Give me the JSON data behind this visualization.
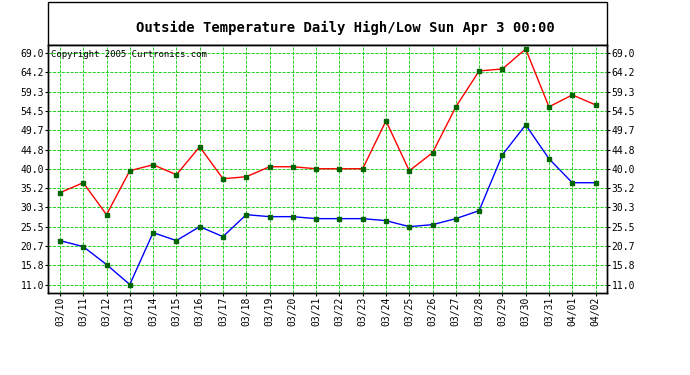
{
  "title": "Outside Temperature Daily High/Low Sun Apr 3 00:00",
  "copyright": "Copyright 2005 Curtronics.com",
  "dates": [
    "03/10",
    "03/11",
    "03/12",
    "03/13",
    "03/14",
    "03/15",
    "03/16",
    "03/17",
    "03/18",
    "03/19",
    "03/20",
    "03/21",
    "03/22",
    "03/23",
    "03/24",
    "03/25",
    "03/26",
    "03/27",
    "03/28",
    "03/29",
    "03/30",
    "03/31",
    "04/01",
    "04/02"
  ],
  "high_temps": [
    34.0,
    36.5,
    28.5,
    39.5,
    41.0,
    38.5,
    45.5,
    37.5,
    38.0,
    40.5,
    40.5,
    40.0,
    40.0,
    40.0,
    52.0,
    39.5,
    44.0,
    55.5,
    64.5,
    65.0,
    70.0,
    55.5,
    58.5,
    56.0
  ],
  "low_temps": [
    22.0,
    20.5,
    16.0,
    11.0,
    24.0,
    22.0,
    25.5,
    23.0,
    28.5,
    28.0,
    28.0,
    27.5,
    27.5,
    27.5,
    27.0,
    25.5,
    26.0,
    27.5,
    29.5,
    43.5,
    51.0,
    42.5,
    36.5,
    36.5
  ],
  "high_color": "#ff0000",
  "low_color": "#0000ff",
  "grid_color": "#00cc00",
  "bg_color": "#ffffff",
  "plot_bg_color": "#ffffff",
  "border_color": "#000000",
  "marker_color": "#006400",
  "yticks": [
    11.0,
    15.8,
    20.7,
    25.5,
    30.3,
    35.2,
    40.0,
    44.8,
    49.7,
    54.5,
    59.3,
    64.2,
    69.0
  ],
  "ymin": 9.0,
  "ymax": 71.0,
  "title_fontsize": 10,
  "tick_fontsize": 7,
  "copyright_fontsize": 6.5
}
